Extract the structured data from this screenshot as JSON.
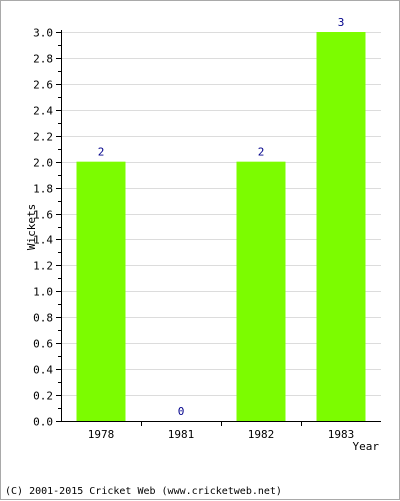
{
  "chart_data": {
    "type": "bar",
    "categories": [
      "1978",
      "1981",
      "1982",
      "1983"
    ],
    "values": [
      2,
      0,
      2,
      3
    ],
    "value_labels": [
      "2",
      "0",
      "2",
      "3"
    ],
    "title": "",
    "xlabel": "Year",
    "ylabel": "Wickets",
    "ylim": [
      0,
      3.0
    ],
    "y_tick_step": 0.2,
    "y_minor_tick_step": 0.1,
    "y_tick_labels": [
      "0.0",
      "0.2",
      "0.4",
      "0.6",
      "0.8",
      "1.0",
      "1.2",
      "1.4",
      "1.6",
      "1.8",
      "2.0",
      "2.2",
      "2.4",
      "2.6",
      "2.8",
      "3.0"
    ],
    "grid": true,
    "legend": "none",
    "colors": {
      "bar": "#7cfc00",
      "value_label": "#00008b",
      "grid": "#dcdcdc",
      "axis": "#000000",
      "frame": "#a9a9a9"
    }
  },
  "footer": {
    "copyright": "(C) 2001-2015 Cricket Web (www.cricketweb.net)"
  }
}
